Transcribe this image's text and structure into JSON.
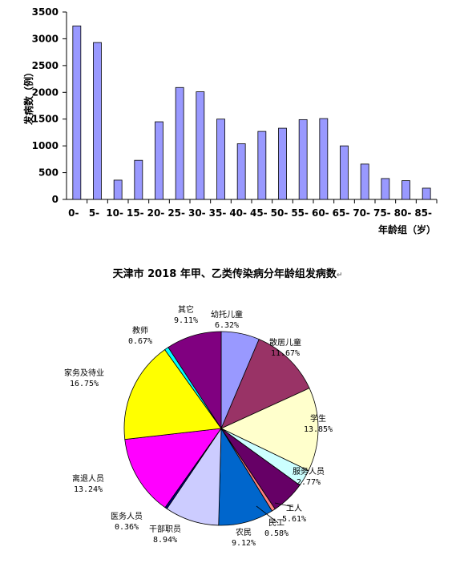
{
  "chart_data": [
    {
      "type": "bar",
      "ylabel": "发病数（例）",
      "xlabel": "年龄组（岁）",
      "ylim": [
        0,
        3500
      ],
      "yticks": [
        0,
        500,
        1000,
        1500,
        2000,
        2500,
        3000,
        3500
      ],
      "grid": false,
      "bar_color": "#9999ff",
      "categories": [
        "0-",
        "5-",
        "10-",
        "15-",
        "20-",
        "25-",
        "30-",
        "35-",
        "40-",
        "45-",
        "50-",
        "55-",
        "60-",
        "65-",
        "70-",
        "75-",
        "80-",
        "85-"
      ],
      "values": [
        3240,
        2930,
        360,
        730,
        1450,
        2090,
        2010,
        1500,
        1040,
        1270,
        1330,
        1490,
        1510,
        1000,
        660,
        390,
        350,
        210
      ]
    },
    {
      "type": "pie",
      "title": "天津市 2018 年甲、乙类传染病分年龄组发病数",
      "title_mark": "↵",
      "slices": [
        {
          "label": "幼托儿童",
          "pct": "6.32%",
          "value": 6.32,
          "color": "#9999ff"
        },
        {
          "label": "散居儿童",
          "pct": "11.67%",
          "value": 11.67,
          "color": "#993366"
        },
        {
          "label": "学生",
          "pct": "13.85%",
          "value": 13.85,
          "color": "#ffffcc"
        },
        {
          "label": "服务人员",
          "pct": "2.77%",
          "value": 2.77,
          "color": "#ccffff"
        },
        {
          "label": "工人",
          "pct": "5.61%",
          "value": 5.61,
          "color": "#660066"
        },
        {
          "label": "民工",
          "pct": "0.58%",
          "value": 0.58,
          "color": "#ff8080"
        },
        {
          "label": "农民",
          "pct": "9.12%",
          "value": 9.12,
          "color": "#0066cc"
        },
        {
          "label": "干部职员",
          "pct": "8.94%",
          "value": 8.94,
          "color": "#ccccff"
        },
        {
          "label": "医务人员",
          "pct": "0.36%",
          "value": 0.36,
          "color": "#000080"
        },
        {
          "label": "离退人员",
          "pct": "13.24%",
          "value": 13.24,
          "color": "#ff00ff"
        },
        {
          "label": "家务及待业",
          "pct": "16.75%",
          "value": 16.75,
          "color": "#ffff00"
        },
        {
          "label": "教师",
          "pct": "0.67%",
          "value": 0.67,
          "color": "#00ffff"
        },
        {
          "label": "其它",
          "pct": "9.11%",
          "value": 9.11,
          "color": "#800080"
        }
      ]
    }
  ]
}
